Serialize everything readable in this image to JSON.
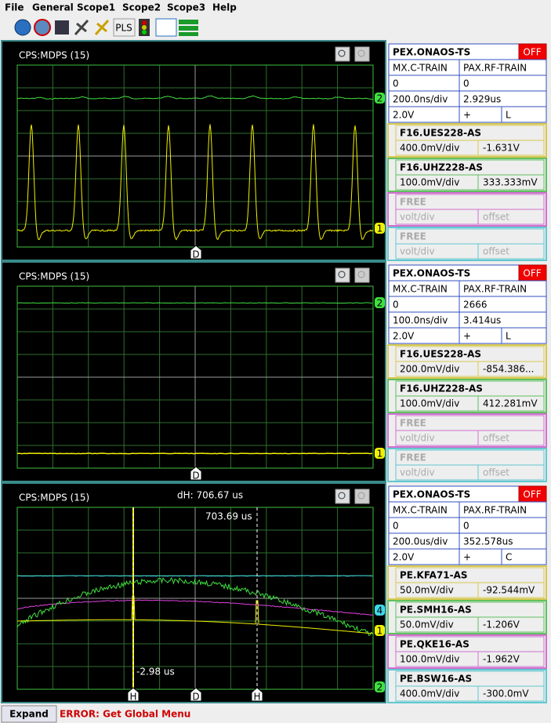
{
  "menu": [
    "File",
    "General",
    "Scope1",
    "Scope2",
    "Scope3",
    "Help"
  ],
  "toolbar": {
    "pls_button": "PLS"
  },
  "scopes": [
    {
      "title": "CPS:MDPS (15)",
      "right_markers": [
        "2",
        "1"
      ],
      "bottom_markers": [
        "D"
      ],
      "controls": {
        "device": "PEX.ONAOS-TS",
        "state": "OFF",
        "selectors": [
          "MX.C-TRAIN",
          "PAX.RF-TRAIN"
        ],
        "selector_values": [
          "0",
          "0"
        ],
        "timebase": [
          "200.0ns/div",
          "2.929us"
        ],
        "vertical": [
          "2.0V",
          "+",
          "L"
        ],
        "channels": [
          {
            "name": "F16.UES228-AS",
            "scale": "400.0mV/div",
            "offset": "-1.631V"
          },
          {
            "name": "F16.UHZ228-AS",
            "scale": "100.0mV/div",
            "offset": "333.333mV"
          },
          {
            "name": "FREE",
            "scale": "volt/div",
            "offset": "offset"
          },
          {
            "name": "FREE",
            "scale": "volt/div",
            "offset": "offset"
          }
        ]
      }
    },
    {
      "title": "CPS:MDPS (15)",
      "right_markers": [
        "2",
        "1"
      ],
      "bottom_markers": [
        "D"
      ],
      "controls": {
        "device": "PEX.ONAOS-TS",
        "state": "OFF",
        "selectors": [
          "MX.C-TRAIN",
          "PAX.RF-TRAIN"
        ],
        "selector_values": [
          "0",
          "2666"
        ],
        "timebase": [
          "100.0ns/div",
          "3.414us"
        ],
        "vertical": [
          "2.0V",
          "+",
          "L"
        ],
        "channels": [
          {
            "name": "F16.UES228-AS",
            "scale": "200.0mV/div",
            "offset": "-854.386..."
          },
          {
            "name": "F16.UHZ228-AS",
            "scale": "100.0mV/div",
            "offset": "412.281mV"
          },
          {
            "name": "FREE",
            "scale": "volt/div",
            "offset": "offset"
          },
          {
            "name": "FREE",
            "scale": "volt/div",
            "offset": "offset"
          }
        ]
      }
    },
    {
      "title": "CPS:MDPS (15)",
      "cursor_readout": "dH: 706.67 us",
      "cursor_labels": [
        "703.69 us",
        "-2.98 us"
      ],
      "right_markers": [
        "4",
        "1",
        "2"
      ],
      "bottom_markers": [
        "H",
        "D",
        "H"
      ],
      "controls": {
        "device": "PEX.ONAOS-TS",
        "state": "OFF",
        "selectors": [
          "MX.C-TRAIN",
          "PAX.RF-TRAIN"
        ],
        "selector_values": [
          "0",
          "0"
        ],
        "timebase": [
          "200.0us/div",
          "352.578us"
        ],
        "vertical": [
          "2.0V",
          "+",
          "C"
        ],
        "channels": [
          {
            "name": "PE.KFA71-AS",
            "scale": "50.0mV/div",
            "offset": "-92.544mV"
          },
          {
            "name": "PE.SMH16-AS",
            "scale": "50.0mV/div",
            "offset": "-1.206V"
          },
          {
            "name": "PE.QKE16-AS",
            "scale": "100.0mV/div",
            "offset": "-1.962V"
          },
          {
            "name": "PE.BSW16-AS",
            "scale": "400.0mV/div",
            "offset": "-300.0mV"
          }
        ]
      }
    }
  ],
  "status": {
    "button": "Expand",
    "message": "ERROR: Get Global Menu"
  }
}
